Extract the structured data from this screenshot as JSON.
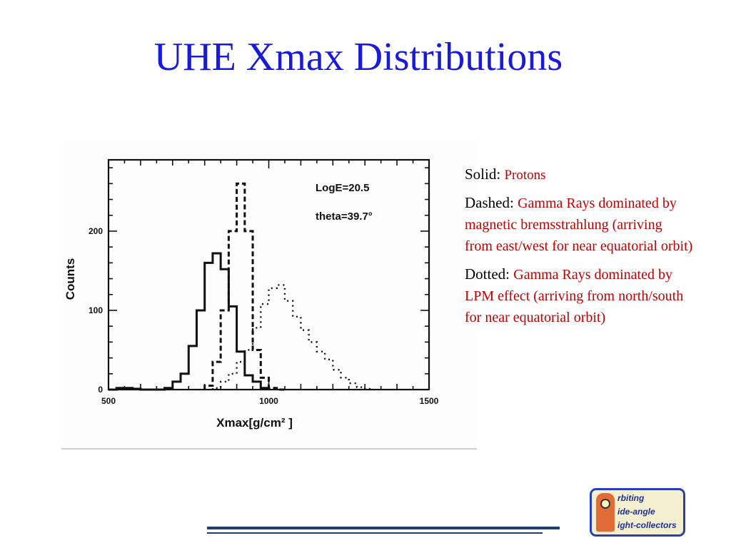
{
  "slide": {
    "title": "UHE Xmax Distributions"
  },
  "legend": {
    "items": [
      {
        "style": "Solid:",
        "text": "Protons"
      },
      {
        "style": "Dashed:",
        "text": "Gamma Rays dominated by magnetic bremsstrahlung (arriving from east/west for near equatorial orbit)"
      },
      {
        "style": "Dotted:",
        "text": "Gamma Rays dominated by LPM effect (arriving from north/south for near equatorial orbit)"
      }
    ]
  },
  "logo": {
    "lines": [
      "rbiting",
      "ide-angle",
      "ight-collectors"
    ]
  },
  "colors": {
    "title": "#1a1adb",
    "legend_desc": "#c00000",
    "rule": "#1d3e6e",
    "logo_border": "#2a3fb5"
  },
  "chart_data": {
    "type": "histogram",
    "xlabel": "Xmax[g/cm² ]",
    "ylabel": "Counts",
    "annotations": [
      "LogE=20.5",
      "theta=39.7°"
    ],
    "xlim": [
      500,
      1500
    ],
    "ylim": [
      0,
      290
    ],
    "xticks": [
      500,
      1000,
      1500
    ],
    "xtick_labels": [
      "500",
      "1000",
      "1500"
    ],
    "yticks": [
      0,
      100,
      200
    ],
    "ytick_labels": [
      "0",
      "100",
      "200"
    ],
    "bin_width": 25,
    "series": [
      {
        "style": "solid",
        "edges": [
          500,
          525,
          550,
          575,
          600,
          625,
          650,
          675,
          700,
          725,
          750,
          775,
          800,
          825,
          850,
          875,
          900,
          925,
          950,
          975,
          1000
        ],
        "values": [
          0,
          2,
          2,
          1,
          0,
          0,
          0,
          2,
          10,
          20,
          55,
          100,
          160,
          172,
          152,
          105,
          48,
          18,
          10,
          2
        ]
      },
      {
        "style": "dashed",
        "edges": [
          800,
          825,
          850,
          875,
          900,
          925,
          950,
          975,
          1000,
          1025,
          1050
        ],
        "values": [
          5,
          35,
          100,
          200,
          260,
          200,
          50,
          15,
          2,
          0
        ]
      },
      {
        "style": "dotted",
        "edges": [
          825,
          850,
          875,
          900,
          925,
          950,
          975,
          1000,
          1025,
          1050,
          1075,
          1100,
          1125,
          1150,
          1175,
          1200,
          1225,
          1250,
          1275,
          1300,
          1325
        ],
        "values": [
          2,
          10,
          20,
          35,
          50,
          78,
          108,
          128,
          132,
          112,
          92,
          75,
          60,
          48,
          38,
          25,
          15,
          8,
          3,
          1
        ]
      }
    ]
  }
}
